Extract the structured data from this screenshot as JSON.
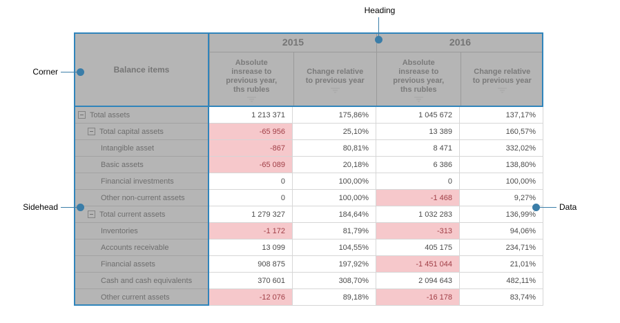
{
  "annotations": {
    "heading": "Heading",
    "corner": "Corner",
    "sidehead": "Sidehead",
    "data": "Data"
  },
  "corner": {
    "label": "Balance items"
  },
  "heading": {
    "groups": [
      {
        "year": "2015",
        "columns": [
          "Absolute insrease to previous year, ths rubles",
          "Change relative to previous year"
        ]
      },
      {
        "year": "2016",
        "columns": [
          "Absolute insrease to previous year, ths rubles",
          "Change relative to previous year"
        ]
      }
    ]
  },
  "rows": [
    {
      "label": "Total assets",
      "level": 0,
      "collapsible": true,
      "cells": [
        {
          "v": "1 213 371"
        },
        {
          "v": "175,86%"
        },
        {
          "v": "1 045 672"
        },
        {
          "v": "137,17%"
        }
      ]
    },
    {
      "label": "Total capital assets",
      "level": 1,
      "collapsible": true,
      "cells": [
        {
          "v": "-65 956",
          "neg": true
        },
        {
          "v": "25,10%"
        },
        {
          "v": "13 389"
        },
        {
          "v": "160,57%"
        }
      ]
    },
    {
      "label": "Intangible asset",
      "level": 2,
      "cells": [
        {
          "v": "-867",
          "neg": true
        },
        {
          "v": "80,81%"
        },
        {
          "v": "8 471"
        },
        {
          "v": "332,02%"
        }
      ]
    },
    {
      "label": "Basic assets",
      "level": 2,
      "cells": [
        {
          "v": "-65 089",
          "neg": true
        },
        {
          "v": "20,18%"
        },
        {
          "v": "6 386"
        },
        {
          "v": "138,80%"
        }
      ]
    },
    {
      "label": "Financial investments",
      "level": 2,
      "cells": [
        {
          "v": "0"
        },
        {
          "v": "100,00%"
        },
        {
          "v": "0"
        },
        {
          "v": "100,00%"
        }
      ]
    },
    {
      "label": "Other non-current assets",
      "level": 2,
      "cells": [
        {
          "v": "0"
        },
        {
          "v": "100,00%"
        },
        {
          "v": "-1 468",
          "neg": true
        },
        {
          "v": "9,27%"
        }
      ]
    },
    {
      "label": "Total current assets",
      "level": 1,
      "collapsible": true,
      "cells": [
        {
          "v": "1 279 327"
        },
        {
          "v": "184,64%"
        },
        {
          "v": "1 032 283"
        },
        {
          "v": "136,99%"
        }
      ]
    },
    {
      "label": "Inventories",
      "level": 2,
      "cells": [
        {
          "v": "-1 172",
          "neg": true
        },
        {
          "v": "81,79%"
        },
        {
          "v": "-313",
          "neg": true
        },
        {
          "v": "94,06%"
        }
      ]
    },
    {
      "label": "Accounts receivable",
      "level": 2,
      "cells": [
        {
          "v": "13 099"
        },
        {
          "v": "104,55%"
        },
        {
          "v": "405 175"
        },
        {
          "v": "234,71%"
        }
      ]
    },
    {
      "label": "Financial assets",
      "level": 2,
      "cells": [
        {
          "v": "908 875"
        },
        {
          "v": "197,92%"
        },
        {
          "v": "-1 451 044",
          "neg": true
        },
        {
          "v": "21,01%"
        }
      ]
    },
    {
      "label": "Cash and cash equivalents",
      "level": 2,
      "cells": [
        {
          "v": "370 601"
        },
        {
          "v": "308,70%"
        },
        {
          "v": "2 094 643"
        },
        {
          "v": "482,11%"
        }
      ]
    },
    {
      "label": "Other current assets",
      "level": 2,
      "cells": [
        {
          "v": "-12 076",
          "neg": true
        },
        {
          "v": "89,18%"
        },
        {
          "v": "-16 178",
          "neg": true
        },
        {
          "v": "83,74%"
        }
      ]
    }
  ],
  "colors": {
    "header_bg": "#b5b5b5",
    "region_border_blue": "#2f84bb",
    "callout_blue": "#3a7da8",
    "negative_bg": "#f6c8cb",
    "negative_text": "#a03e46"
  }
}
